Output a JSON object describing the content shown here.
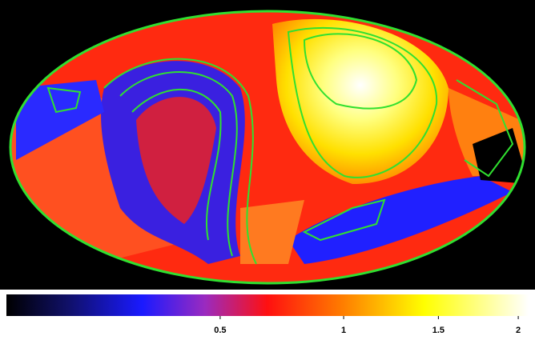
{
  "chart_data": {
    "type": "heatmap",
    "scale": "sqrt",
    "clim": [
      0.04,
      2.07
    ],
    "colorbar_ticks": [
      0.5,
      1,
      1.5,
      2
    ]
  }
}
